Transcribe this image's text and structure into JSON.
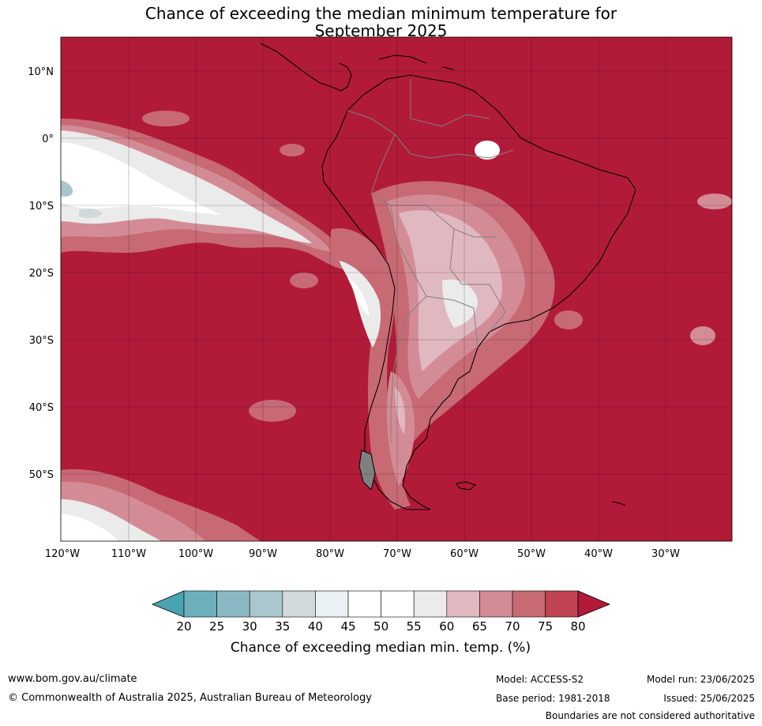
{
  "title_line1": "Chance of exceeding the median minimum temperature for",
  "title_line2": "September 2025",
  "map": {
    "lat_labels": [
      "10°N",
      "0°",
      "10°S",
      "20°S",
      "30°S",
      "40°S",
      "50°S"
    ],
    "lon_labels": [
      "120°W",
      "110°W",
      "100°W",
      "90°W",
      "80°W",
      "70°W",
      "60°W",
      "50°W",
      "40°W",
      "30°W"
    ],
    "background_color": "#b11b37",
    "coastline_color": "#000000",
    "border_color": "#808080"
  },
  "colorbar": {
    "ticks": [
      "20",
      "25",
      "30",
      "35",
      "40",
      "45",
      "50",
      "55",
      "60",
      "65",
      "70",
      "75",
      "80"
    ],
    "colors": [
      "#4aa3b0",
      "#6cb0bc",
      "#8ab9c5",
      "#a9c7cc",
      "#d2d9db",
      "#e9f1f3",
      "#ffffff",
      "#ffffff",
      "#ebebeb",
      "#e0b8bf",
      "#d38c96",
      "#c76a74",
      "#c04353",
      "#b11b37"
    ],
    "label": "Chance of exceeding median min. temp. (%)"
  },
  "footer": {
    "website": "www.bom.gov.au/climate",
    "copyright": "© Commonwealth of Australia 2025, Australian Bureau of Meteorology",
    "model": "Model: ACCESS-S2",
    "base_period": "Base period: 1981-2018",
    "model_run": "Model run: 23/06/2025",
    "issued": "Issued: 25/06/2025",
    "disclaimer": "Boundaries are not considered authoritative"
  }
}
